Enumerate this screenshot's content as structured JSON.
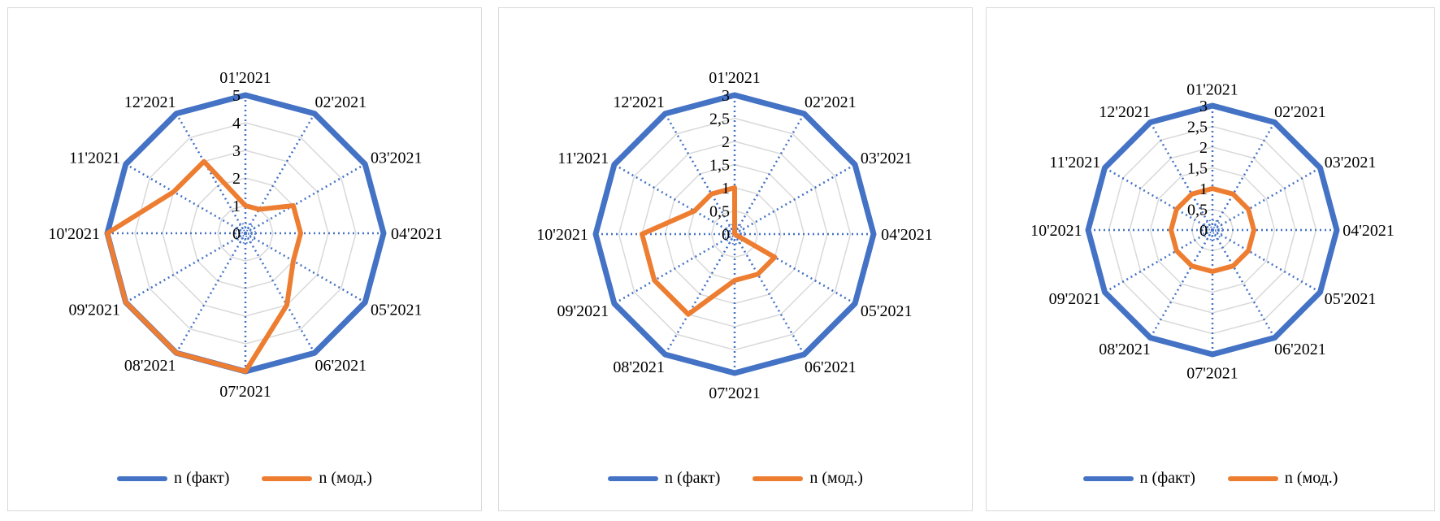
{
  "colors": {
    "fact": "#4472C4",
    "model": "#ED7D31",
    "grid": "#d9d9d9",
    "spoke": "#4472C4"
  },
  "legend": {
    "fact": "n (факт)",
    "model": "n (мод.)"
  },
  "chart_data": [
    {
      "type": "radar",
      "categories": [
        "01'2021",
        "02'2021",
        "03'2021",
        "04'2021",
        "05'2021",
        "06'2021",
        "07'2021",
        "08'2021",
        "09'2021",
        "10'2021",
        "11'2021",
        "12'2021"
      ],
      "ticks": [
        "0",
        "1",
        "2",
        "3",
        "4",
        "5"
      ],
      "rlim": [
        0,
        5
      ],
      "grid": true,
      "legend_position": "bottom",
      "series": [
        {
          "name": "n (факт)",
          "values": [
            5,
            5,
            5,
            5,
            5,
            5,
            5,
            5,
            5,
            5,
            5,
            5
          ]
        },
        {
          "name": "n (мод.)",
          "values": [
            1,
            1,
            2,
            2,
            2,
            3,
            5,
            5,
            5,
            5,
            3,
            3
          ]
        }
      ]
    },
    {
      "type": "radar",
      "categories": [
        "01'2021",
        "02'2021",
        "03'2021",
        "04'2021",
        "05'2021",
        "06'2021",
        "07'2021",
        "08'2021",
        "09'2021",
        "10'2021",
        "11'2021",
        "12'2021"
      ],
      "ticks": [
        "0",
        "0,5",
        "1",
        "1,5",
        "2",
        "2,5",
        "3"
      ],
      "rlim": [
        0,
        3
      ],
      "grid": true,
      "legend_position": "bottom",
      "series": [
        {
          "name": "n (факт)",
          "values": [
            3,
            3,
            3,
            3,
            3,
            3,
            3,
            3,
            3,
            3,
            3,
            3
          ]
        },
        {
          "name": "n (мод.)",
          "values": [
            1,
            0,
            0,
            0,
            1,
            1,
            1,
            2,
            2,
            2,
            1,
            1
          ]
        }
      ]
    },
    {
      "type": "radar",
      "categories": [
        "01'2021",
        "02'2021",
        "03'2021",
        "04'2021",
        "05'2021",
        "06'2021",
        "07'2021",
        "08'2021",
        "09'2021",
        "10'2021",
        "11'2021",
        "12'2021"
      ],
      "ticks": [
        "0",
        "0,5",
        "1",
        "1,5",
        "2",
        "2,5",
        "3"
      ],
      "rlim": [
        0,
        3
      ],
      "grid": true,
      "legend_position": "bottom",
      "series": [
        {
          "name": "n (факт)",
          "values": [
            3,
            3,
            3,
            3,
            3,
            3,
            3,
            3,
            3,
            3,
            3,
            3
          ]
        },
        {
          "name": "n (мод.)",
          "values": [
            1,
            1,
            1,
            1,
            1,
            1,
            1,
            1,
            1,
            1,
            1,
            1
          ]
        }
      ]
    }
  ]
}
